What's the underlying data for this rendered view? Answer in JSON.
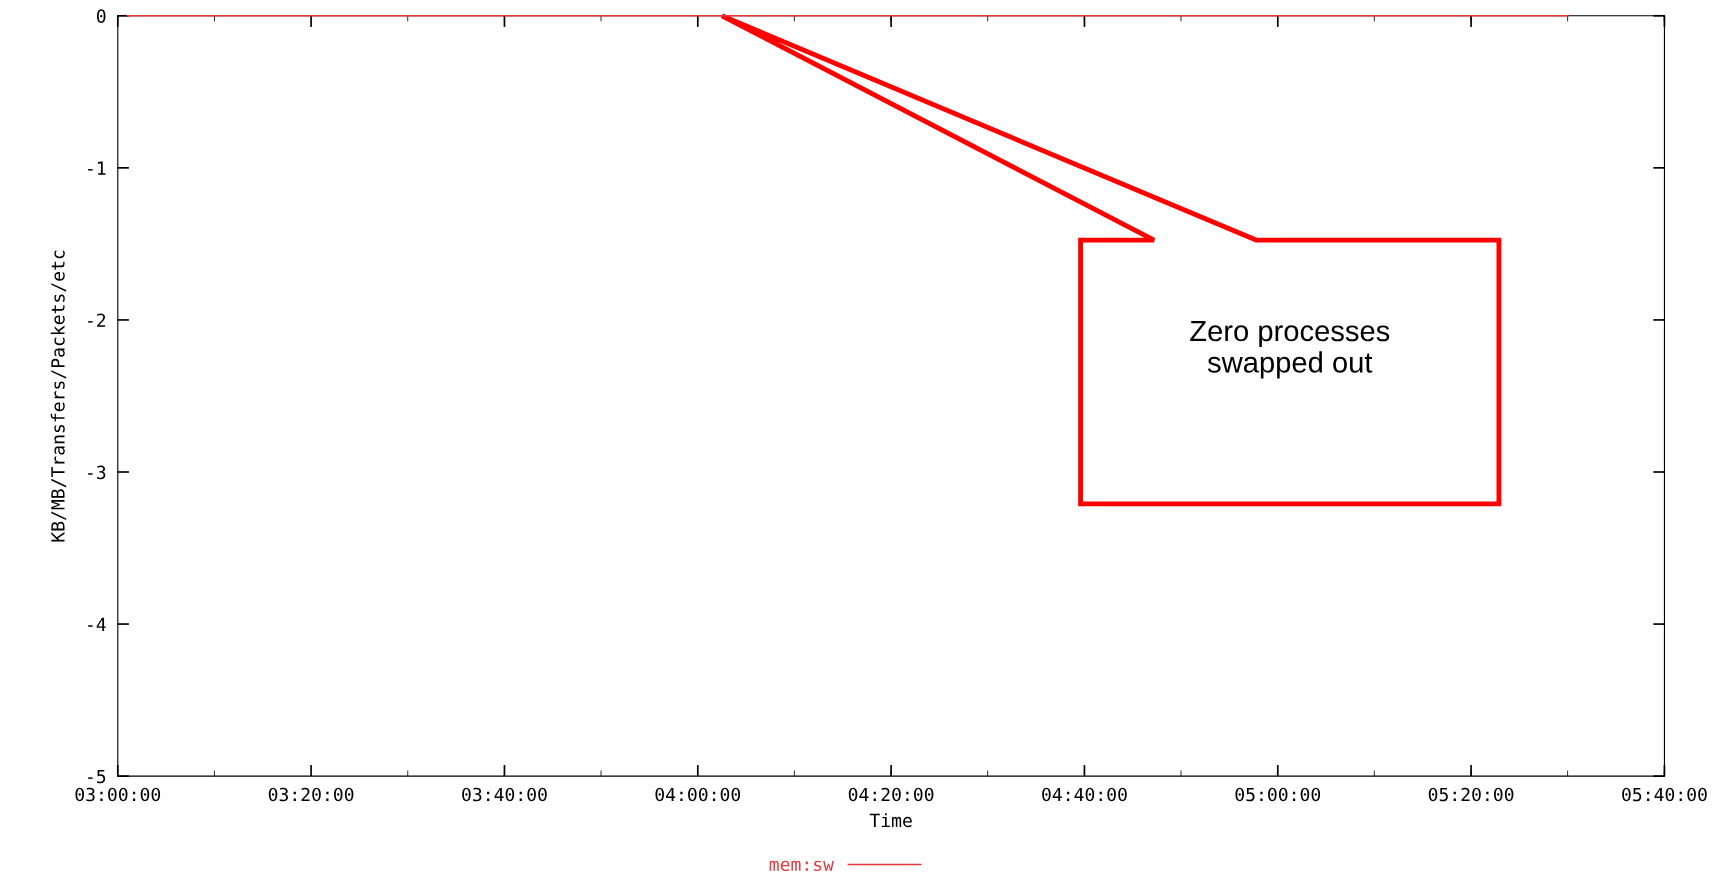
{
  "chart_data": {
    "type": "line",
    "xlabel": "Time",
    "ylabel": "KB/MB/Transfers/Packets/etc",
    "series": [
      {
        "name": "mem:sw",
        "color": "#e8383d",
        "x": [
          3.0167,
          5.5
        ],
        "values": [
          0,
          0
        ]
      }
    ],
    "xlim": [
      3.0,
      5.6667
    ],
    "xticks": [
      {
        "value": 3.0,
        "label": "03:00:00"
      },
      {
        "value": 3.3333,
        "label": "03:20:00"
      },
      {
        "value": 3.6667,
        "label": "03:40:00"
      },
      {
        "value": 4.0,
        "label": "04:00:00"
      },
      {
        "value": 4.3333,
        "label": "04:20:00"
      },
      {
        "value": 4.6667,
        "label": "04:40:00"
      },
      {
        "value": 5.0,
        "label": "05:00:00"
      },
      {
        "value": 5.3333,
        "label": "05:20:00"
      },
      {
        "value": 5.6667,
        "label": "05:40:00"
      }
    ],
    "ylim": [
      -5,
      0
    ],
    "yticks": [
      -5,
      -4,
      -3,
      -2,
      -1,
      0
    ],
    "annotations": [
      "Zero processes\nswapped out"
    ],
    "legend": "bottom",
    "grid": false,
    "marker": "none",
    "line_style": "solid"
  }
}
